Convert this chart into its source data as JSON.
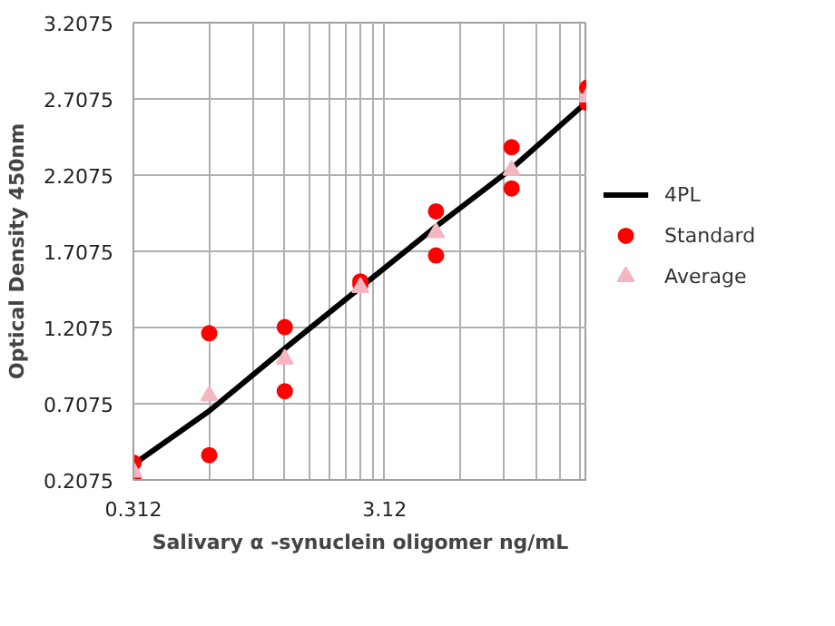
{
  "chart_data": {
    "type": "scatter",
    "xlabel": "Salivary α -synuclein oligomer ng/mL",
    "ylabel": "Optical Density 450nm",
    "log": "x",
    "xlim": [
      0.312,
      20
    ],
    "xticks": [
      0.312,
      {
        "value": 0.624,
        "label": null
      },
      {
        "value": 0.936,
        "label": null
      },
      {
        "value": 1.248,
        "label": null
      },
      {
        "value": 1.56,
        "label": null
      },
      {
        "value": 1.872,
        "label": null
      },
      {
        "value": 2.184,
        "label": null
      },
      {
        "value": 2.496,
        "label": null
      },
      {
        "value": 2.808,
        "label": null
      },
      3.12,
      {
        "value": 6.24,
        "label": null
      },
      {
        "value": 9.36,
        "label": null
      },
      {
        "value": 12.48,
        "label": null
      },
      {
        "value": 15.6,
        "label": null
      },
      {
        "value": 18.72,
        "label": null
      }
    ],
    "ylim": [
      0.2075,
      3.2075
    ],
    "yticks": [
      0.2075,
      0.7075,
      1.2075,
      1.7075,
      2.2075,
      2.7075,
      3.2075
    ],
    "grid": true,
    "legend": "right",
    "series": [
      {
        "name": "4PL",
        "type": "line",
        "color": "#000000",
        "marker": "none",
        "line_style": "solid",
        "x": [
          0.3125,
          0.625,
          1.25,
          2.5,
          5,
          10,
          20
        ],
        "values": [
          0.31,
          0.66,
          1.07,
          1.47,
          1.87,
          2.25,
          2.69
        ]
      },
      {
        "name": "Standard",
        "color": "#ff0000",
        "marker": "circle",
        "x": [
          0.3125,
          0.3125,
          0.625,
          0.625,
          1.25,
          1.25,
          2.5,
          2.5,
          5,
          5,
          10,
          10,
          20,
          20
        ],
        "values": [
          0.32,
          0.21,
          1.17,
          0.37,
          1.21,
          0.79,
          1.51,
          1.49,
          1.97,
          1.68,
          2.39,
          2.12,
          2.78,
          2.68
        ]
      },
      {
        "name": "Average",
        "color": "#f4b6c2",
        "marker": "triangle",
        "x": [
          0.3125,
          0.625,
          1.25,
          2.5,
          5,
          10,
          20
        ],
        "values": [
          0.26,
          0.76,
          1.0,
          1.47,
          1.83,
          2.24,
          2.72
        ]
      }
    ]
  }
}
